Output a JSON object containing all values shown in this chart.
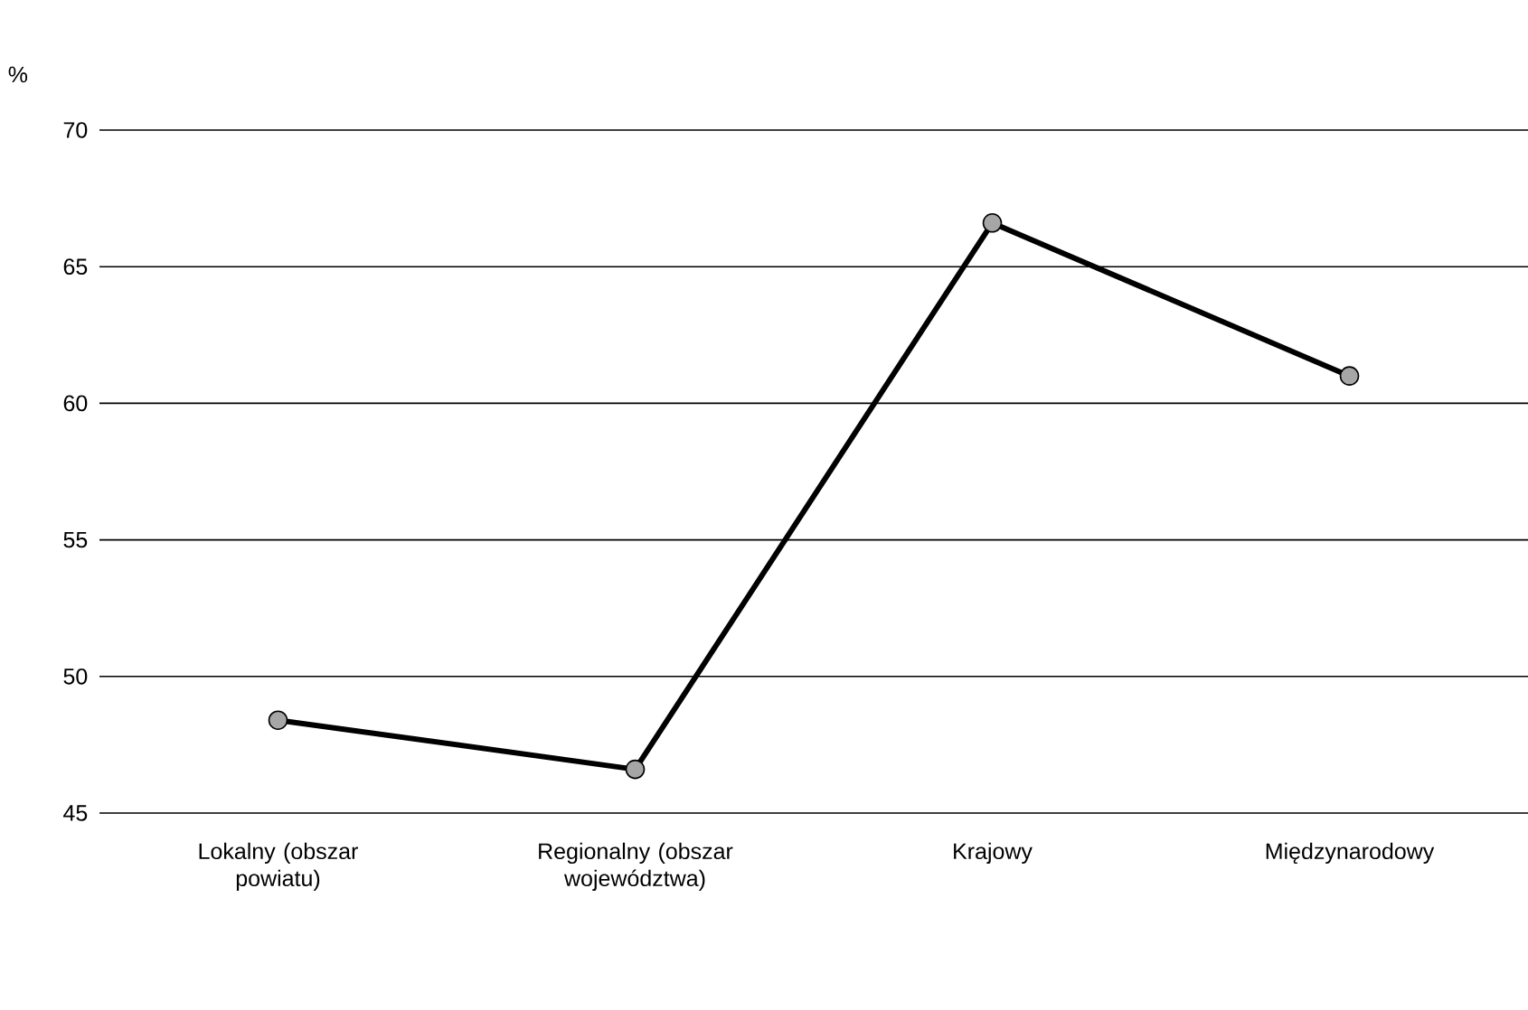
{
  "chart_data": {
    "type": "line",
    "ylabel": "%",
    "categories": [
      "Lokalny (obszar powiatu)",
      "Regionalny (obszar województwa)",
      "Krajowy",
      "Międzynarodowy"
    ],
    "series": [
      {
        "color": "#000000",
        "values": [
          48.4,
          46.6,
          66.6,
          61.0
        ]
      }
    ],
    "ylim": [
      45,
      70
    ],
    "yticks": [
      45,
      50,
      55,
      60,
      65,
      70
    ],
    "grid": "y",
    "marker": "circle",
    "line_style": "solid"
  }
}
